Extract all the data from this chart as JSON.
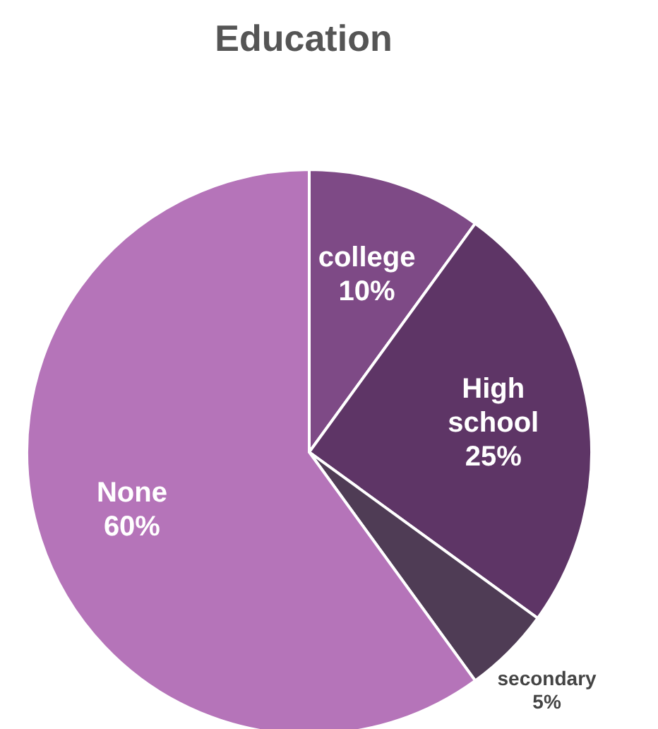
{
  "chart_data": {
    "type": "pie",
    "title": "Education",
    "categories": [
      "college",
      "High school",
      "secondary",
      "None"
    ],
    "values": [
      10,
      25,
      5,
      60
    ],
    "value_labels": [
      "10%",
      "25%",
      "5%",
      "60%"
    ],
    "colors": [
      "#7e4a86",
      "#5e3566",
      "#4f3c55",
      "#b574b9"
    ],
    "legend": false
  }
}
